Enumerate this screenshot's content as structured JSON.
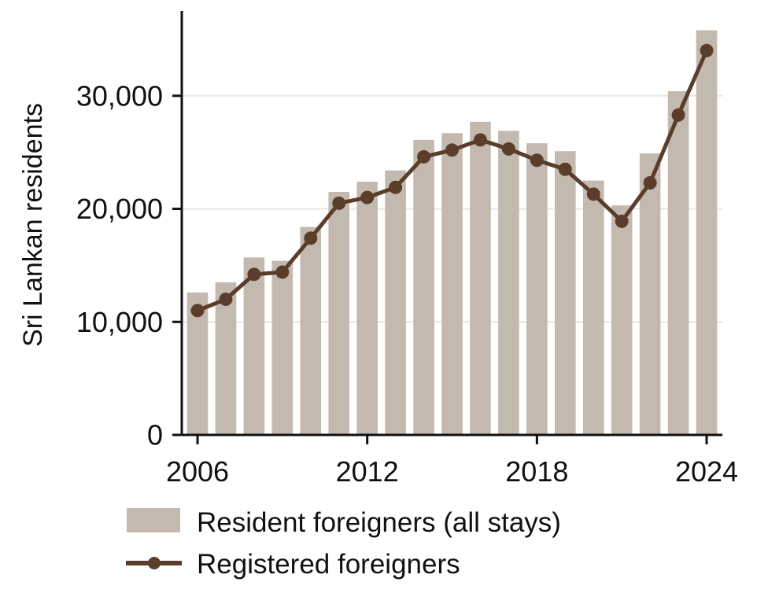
{
  "chart_data": {
    "type": "bar",
    "title": "",
    "xlabel": "",
    "ylabel": "Sri Lankan residents",
    "ylim": [
      0,
      37500
    ],
    "yticks": [
      0,
      10000,
      20000,
      30000
    ],
    "ytick_labels": [
      "0",
      "10,000",
      "20,000",
      "30,000"
    ],
    "xtick_labels": [
      "2006",
      "2012",
      "2018",
      "2024"
    ],
    "xtick_years": [
      2006,
      2012,
      2018,
      2024
    ],
    "grid": "horizontal",
    "legend_position": "bottom",
    "x": [
      2006,
      2007,
      2008,
      2009,
      2010,
      2011,
      2012,
      2013,
      2014,
      2015,
      2016,
      2017,
      2018,
      2019,
      2020,
      2021,
      2022,
      2023,
      2024
    ],
    "series": [
      {
        "name": "Resident foreigners (all stays)",
        "kind": "bar",
        "color": "#c4b9af",
        "values": [
          12600,
          13500,
          15700,
          15400,
          18400,
          21500,
          22400,
          23400,
          26100,
          26700,
          27700,
          26900,
          25800,
          25100,
          22500,
          20300,
          24900,
          30400,
          35800
        ]
      },
      {
        "name": "Registered foreigners",
        "kind": "line",
        "color": "#5a3e2b",
        "values": [
          11000,
          12000,
          14200,
          14400,
          17400,
          20500,
          21000,
          21900,
          24600,
          25200,
          26100,
          25300,
          24300,
          23500,
          21300,
          18900,
          22300,
          28300,
          34000
        ]
      }
    ]
  }
}
